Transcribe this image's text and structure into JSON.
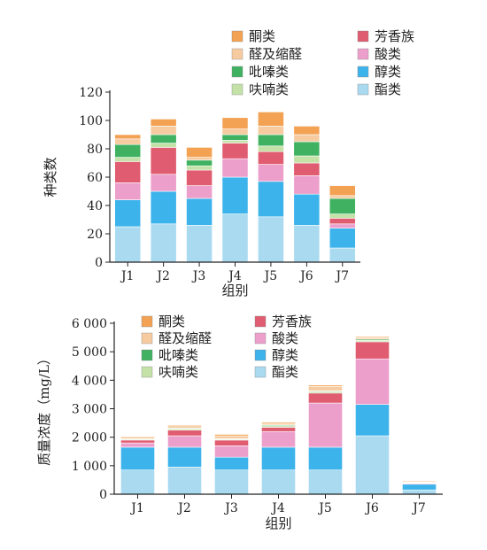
{
  "chart_data": [
    {
      "type": "bar",
      "stacked": true,
      "categories": [
        "J1",
        "J2",
        "J3",
        "J4",
        "J5",
        "J6",
        "J7"
      ],
      "xlabel": "组别",
      "ylabel": "种类数",
      "ylim": [
        0,
        120
      ],
      "yticks": [
        0,
        20,
        40,
        60,
        80,
        100,
        120
      ],
      "ytick_labels": [
        "0",
        "20",
        "40",
        "60",
        "80",
        "100",
        "120"
      ],
      "grid": false,
      "legend_position": "top",
      "series": [
        {
          "name": "酯类",
          "color": "#a9daf0",
          "values": [
            25,
            27,
            26,
            34,
            32,
            26,
            10
          ]
        },
        {
          "name": "醇类",
          "color": "#3db3eb",
          "values": [
            19,
            23,
            19,
            26,
            25,
            22,
            14
          ]
        },
        {
          "name": "酸类",
          "color": "#ec9fcb",
          "values": [
            12,
            12,
            9,
            13,
            12,
            13,
            3
          ]
        },
        {
          "name": "芳香族",
          "color": "#e05c70",
          "values": [
            15,
            19,
            11,
            11,
            9,
            9,
            4
          ]
        },
        {
          "name": "呋喃类",
          "color": "#c4e2a8",
          "values": [
            3,
            3,
            3,
            2,
            4,
            5,
            3
          ]
        },
        {
          "name": "吡嗪类",
          "color": "#3fb160",
          "values": [
            9,
            6,
            4,
            4,
            8,
            10,
            11
          ]
        },
        {
          "name": "醛及缩醛",
          "color": "#f6cba0",
          "values": [
            4,
            6,
            2,
            4,
            6,
            5,
            2
          ]
        },
        {
          "name": "酮类",
          "color": "#f3a253",
          "values": [
            3,
            5,
            7,
            8,
            10,
            6,
            7
          ]
        }
      ]
    },
    {
      "type": "bar",
      "stacked": true,
      "categories": [
        "J1",
        "J2",
        "J3",
        "J4",
        "J5",
        "J6",
        "J7"
      ],
      "xlabel": "组别",
      "ylabel": "质量浓度（mg/L）",
      "ylim": [
        0,
        6000
      ],
      "yticks": [
        0,
        1000,
        2000,
        3000,
        4000,
        5000,
        6000
      ],
      "ytick_labels": [
        "0",
        "1 000",
        "2 000",
        "3 000",
        "4 000",
        "5 000",
        "6 000"
      ],
      "grid": false,
      "legend_position": "top-left",
      "series": [
        {
          "name": "酯类",
          "color": "#a9daf0",
          "values": [
            850,
            950,
            850,
            850,
            850,
            2050,
            150
          ]
        },
        {
          "name": "醇类",
          "color": "#3db3eb",
          "values": [
            800,
            700,
            450,
            800,
            800,
            1100,
            200
          ]
        },
        {
          "name": "酸类",
          "color": "#ec9fcb",
          "values": [
            150,
            400,
            400,
            550,
            1550,
            1600,
            30
          ]
        },
        {
          "name": "芳香族",
          "color": "#e05c70",
          "values": [
            100,
            200,
            200,
            150,
            350,
            600,
            20
          ]
        },
        {
          "name": "呋喃类",
          "color": "#c4e2a8",
          "values": [
            30,
            50,
            30,
            50,
            60,
            50,
            10
          ]
        },
        {
          "name": "吡嗪类",
          "color": "#3fb160",
          "values": [
            20,
            20,
            20,
            30,
            20,
            40,
            20
          ]
        },
        {
          "name": "醛及缩醛",
          "color": "#f6cba0",
          "values": [
            50,
            80,
            100,
            40,
            150,
            50,
            40
          ]
        },
        {
          "name": "酮类",
          "color": "#f3a253",
          "values": [
            30,
            30,
            50,
            50,
            50,
            40,
            20
          ]
        }
      ]
    }
  ],
  "legend_order": [
    "酮类",
    "芳香族",
    "醛及缩醛",
    "酸类",
    "吡嗪类",
    "醇类",
    "呋喃类",
    "酯类"
  ]
}
